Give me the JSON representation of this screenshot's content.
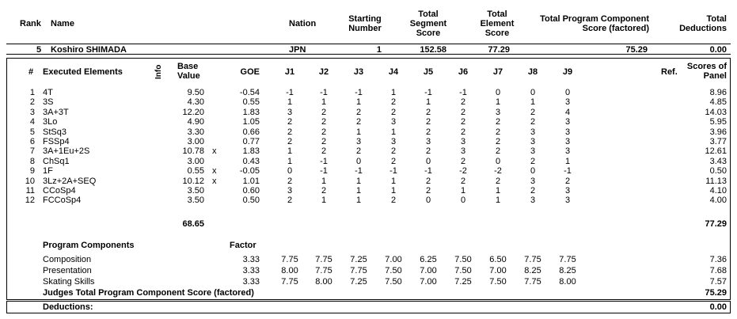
{
  "header": {
    "rank": "Rank",
    "name": "Name",
    "nation": "Nation",
    "starting": "Starting\nNumber",
    "tss": "Total\nSegment\nScore",
    "tes": "Total\nElement\nScore",
    "pcs": "Total Program Component\nScore (factored)",
    "ded": "Total\nDeductions"
  },
  "skater": {
    "rank": "5",
    "name": "Koshiro SHIMADA",
    "nation": "JPN",
    "start": "1",
    "tss": "152.58",
    "tes": "77.29",
    "pcs": "75.29",
    "ded": "0.00"
  },
  "elements_header": {
    "num": "#",
    "exec": "Executed Elements",
    "info": "Info",
    "base": "Base\nValue",
    "goe": "GOE",
    "judges": [
      "J1",
      "J2",
      "J3",
      "J4",
      "J5",
      "J6",
      "J7",
      "J8",
      "J9"
    ],
    "ref": "Ref.",
    "panel": "Scores of\nPanel"
  },
  "elements": [
    {
      "n": "1",
      "el": "4T",
      "info": "",
      "base": "9.50",
      "x": "",
      "goe": "-0.54",
      "j": [
        "-1",
        "-1",
        "-1",
        "1",
        "-1",
        "-1",
        "0",
        "0",
        "0"
      ],
      "score": "8.96"
    },
    {
      "n": "2",
      "el": "3S",
      "info": "",
      "base": "4.30",
      "x": "",
      "goe": "0.55",
      "j": [
        "1",
        "1",
        "1",
        "2",
        "1",
        "2",
        "1",
        "1",
        "3"
      ],
      "score": "4.85"
    },
    {
      "n": "3",
      "el": "3A+3T",
      "info": "",
      "base": "12.20",
      "x": "",
      "goe": "1.83",
      "j": [
        "3",
        "2",
        "2",
        "2",
        "2",
        "2",
        "3",
        "2",
        "4"
      ],
      "score": "14.03"
    },
    {
      "n": "4",
      "el": "3Lo",
      "info": "",
      "base": "4.90",
      "x": "",
      "goe": "1.05",
      "j": [
        "2",
        "2",
        "2",
        "3",
        "2",
        "2",
        "2",
        "2",
        "3"
      ],
      "score": "5.95"
    },
    {
      "n": "5",
      "el": "StSq3",
      "info": "",
      "base": "3.30",
      "x": "",
      "goe": "0.66",
      "j": [
        "2",
        "2",
        "1",
        "1",
        "2",
        "2",
        "2",
        "3",
        "3"
      ],
      "score": "3.96"
    },
    {
      "n": "6",
      "el": "FSSp4",
      "info": "",
      "base": "3.00",
      "x": "",
      "goe": "0.77",
      "j": [
        "2",
        "2",
        "3",
        "3",
        "3",
        "3",
        "2",
        "3",
        "3"
      ],
      "score": "3.77"
    },
    {
      "n": "7",
      "el": "3A+1Eu+2S",
      "info": "",
      "base": "10.78",
      "x": "x",
      "goe": "1.83",
      "j": [
        "1",
        "2",
        "2",
        "2",
        "2",
        "3",
        "2",
        "3",
        "3"
      ],
      "score": "12.61"
    },
    {
      "n": "8",
      "el": "ChSq1",
      "info": "",
      "base": "3.00",
      "x": "",
      "goe": "0.43",
      "j": [
        "1",
        "-1",
        "0",
        "2",
        "0",
        "2",
        "0",
        "2",
        "1"
      ],
      "score": "3.43"
    },
    {
      "n": "9",
      "el": "1F",
      "info": "",
      "base": "0.55",
      "x": "x",
      "goe": "-0.05",
      "j": [
        "0",
        "-1",
        "-1",
        "-1",
        "-1",
        "-2",
        "-2",
        "0",
        "-1"
      ],
      "score": "0.50"
    },
    {
      "n": "10",
      "el": "3Lz+2A+SEQ",
      "info": "",
      "base": "10.12",
      "x": "x",
      "goe": "1.01",
      "j": [
        "2",
        "1",
        "1",
        "1",
        "2",
        "2",
        "2",
        "3",
        "2"
      ],
      "score": "11.13"
    },
    {
      "n": "11",
      "el": "CCoSp4",
      "info": "",
      "base": "3.50",
      "x": "",
      "goe": "0.60",
      "j": [
        "3",
        "2",
        "1",
        "1",
        "2",
        "1",
        "1",
        "2",
        "3"
      ],
      "score": "4.10"
    },
    {
      "n": "12",
      "el": "FCCoSp4",
      "info": "",
      "base": "3.50",
      "x": "",
      "goe": "0.50",
      "j": [
        "2",
        "1",
        "1",
        "2",
        "0",
        "0",
        "1",
        "3",
        "3"
      ],
      "score": "4.00"
    }
  ],
  "base_total": "68.65",
  "elements_total": "77.29",
  "pc_header": {
    "title": "Program Components",
    "factor": "Factor"
  },
  "components": [
    {
      "name": "Composition",
      "factor": "3.33",
      "j": [
        "7.75",
        "7.75",
        "7.25",
        "7.00",
        "6.25",
        "7.50",
        "6.50",
        "7.75",
        "7.75"
      ],
      "score": "7.36"
    },
    {
      "name": "Presentation",
      "factor": "3.33",
      "j": [
        "8.00",
        "7.75",
        "7.75",
        "7.50",
        "7.00",
        "7.50",
        "7.00",
        "8.25",
        "8.25"
      ],
      "score": "7.68"
    },
    {
      "name": "Skating Skills",
      "factor": "3.33",
      "j": [
        "7.75",
        "8.00",
        "7.25",
        "7.50",
        "7.00",
        "7.25",
        "7.50",
        "7.75",
        "8.00"
      ],
      "score": "7.57"
    }
  ],
  "judges_total_label": "Judges Total Program Component Score (factored)",
  "judges_total": "75.29",
  "deductions_label": "Deductions:",
  "deductions_value": "0.00"
}
